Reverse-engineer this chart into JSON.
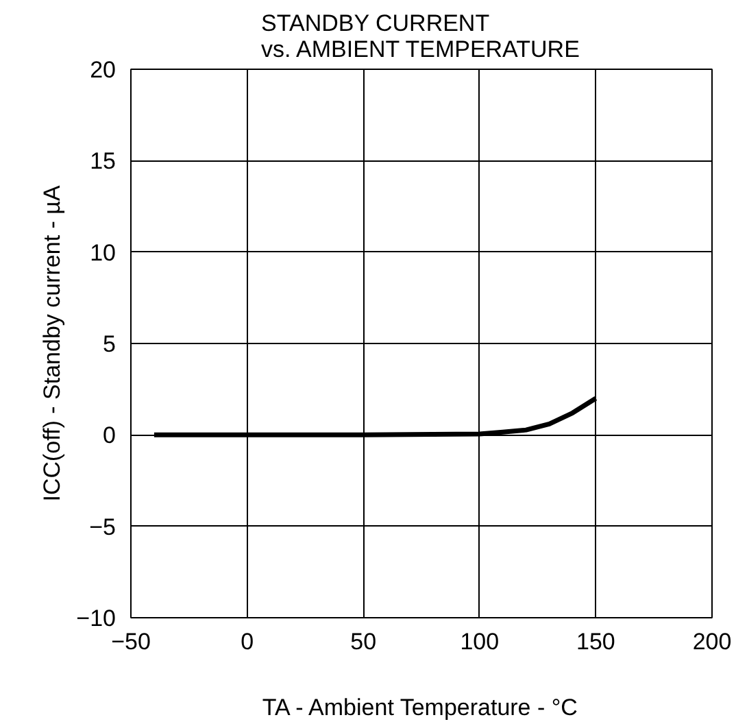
{
  "chart_data": {
    "type": "line",
    "title": "STANDBY CURRENT\nvs. AMBIENT TEMPERATURE",
    "xlabel": "TA - Ambient Temperature - °C",
    "ylabel": "ICC(off) - Standby current - µA",
    "x": [
      -40,
      0,
      50,
      100,
      110,
      120,
      130,
      140,
      150
    ],
    "series": [
      {
        "color": "#000000",
        "values": [
          0,
          0,
          0,
          0.05,
          0.15,
          0.27,
          0.6,
          1.2,
          2.0
        ]
      }
    ],
    "xlim": [
      -50,
      200
    ],
    "xticks": [
      {
        "value": -50,
        "label": "−50"
      },
      0,
      50,
      100,
      150,
      200
    ],
    "ylim": [
      -10,
      20
    ],
    "yticks": [
      {
        "value": -10,
        "label": "−10"
      },
      {
        "value": -5,
        "label": "−5"
      },
      0,
      5,
      10,
      15,
      20
    ],
    "grid": true,
    "marker": "none",
    "line_style": "solid"
  }
}
